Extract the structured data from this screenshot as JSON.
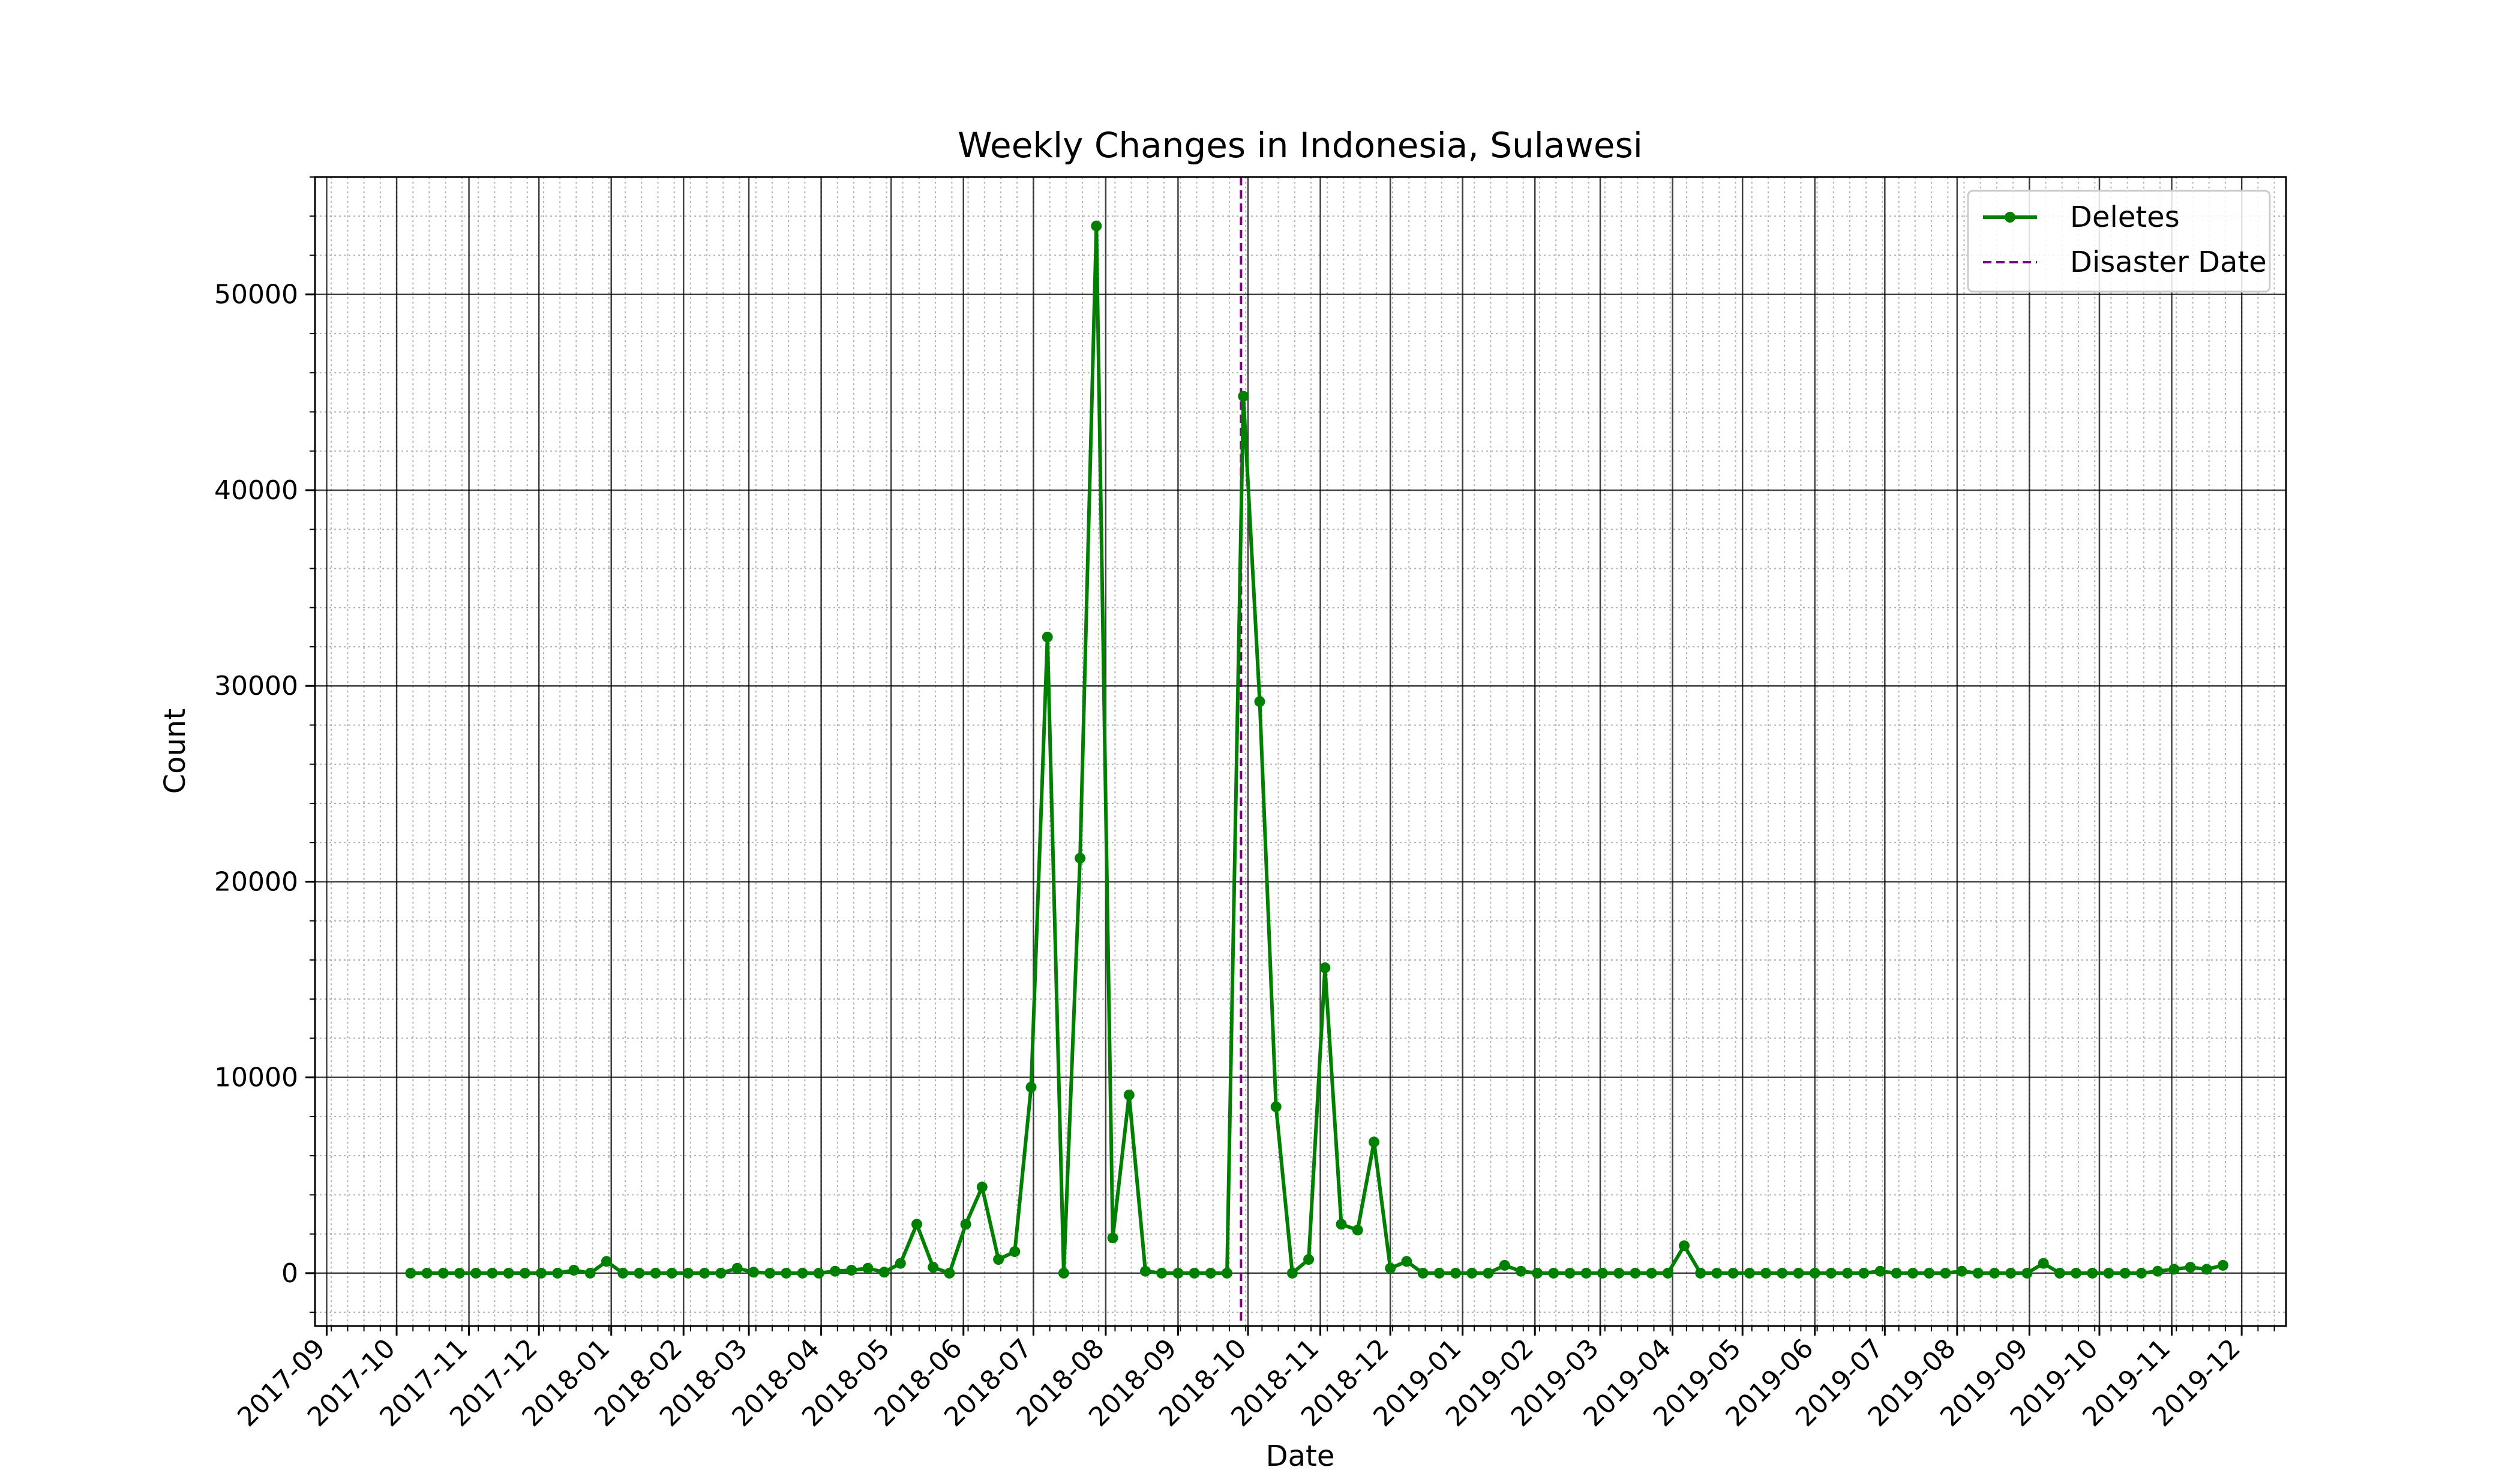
{
  "chart_data": {
    "type": "line",
    "title": "Weekly Changes in Indonesia, Sulawesi",
    "xlabel": "Date",
    "ylabel": "Count",
    "x_ticks": [
      "2017-09",
      "2017-10",
      "2017-11",
      "2017-12",
      "2018-01",
      "2018-02",
      "2018-03",
      "2018-04",
      "2018-05",
      "2018-06",
      "2018-07",
      "2018-08",
      "2018-09",
      "2018-10",
      "2018-11",
      "2018-12",
      "2019-01",
      "2019-02",
      "2019-03",
      "2019-04",
      "2019-05",
      "2019-06",
      "2019-07",
      "2019-08",
      "2019-09",
      "2019-10",
      "2019-11",
      "2019-12"
    ],
    "y_ticks": [
      0,
      10000,
      20000,
      30000,
      40000,
      50000
    ],
    "xlim": [
      "2017-08-27",
      "2019-12-20"
    ],
    "ylim": [
      -2700,
      56000
    ],
    "grid": true,
    "legend_position": "top-right",
    "series": [
      {
        "name": "Deletes",
        "color": "#008000",
        "start": "2017-10-07",
        "interval_days": 7,
        "values": [
          0,
          0,
          0,
          0,
          0,
          0,
          0,
          0,
          0,
          0,
          150,
          0,
          600,
          0,
          0,
          0,
          0,
          0,
          0,
          0,
          250,
          50,
          0,
          0,
          0,
          0,
          100,
          150,
          250,
          50,
          500,
          2500,
          300,
          0,
          2500,
          4400,
          700,
          1100,
          9500,
          32500,
          0,
          21200,
          53500,
          1800,
          9100,
          100,
          0,
          0,
          0,
          0,
          0,
          44800,
          29200,
          8500,
          0,
          700,
          15600,
          2500,
          2200,
          6700,
          250,
          600,
          0,
          0,
          0,
          0,
          0,
          400,
          100,
          0,
          0,
          0,
          0,
          0,
          0,
          0,
          0,
          0,
          1400,
          0,
          0,
          0,
          0,
          0,
          0,
          0,
          0,
          0,
          0,
          0,
          100,
          0,
          0,
          0,
          0,
          100,
          0,
          0,
          0,
          0,
          500,
          0,
          0,
          0,
          0,
          0,
          0,
          100,
          200,
          300,
          200,
          400
        ]
      }
    ],
    "annotations": [
      {
        "name": "Disaster Date",
        "type": "vline",
        "x": "2018-09-28",
        "color": "#800080",
        "style": "dashed"
      }
    ]
  }
}
